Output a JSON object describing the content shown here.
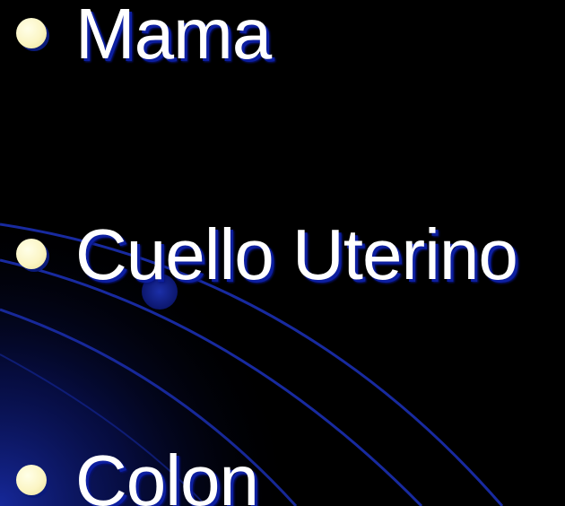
{
  "slide": {
    "background_color": "#000000",
    "accent_color": "#1a2fb5",
    "bullet_color": "#fbf5c4",
    "bullets": [
      {
        "icon": "bullet-dot",
        "label": "Mama"
      },
      {
        "icon": "bullet-dot",
        "label": "Cuello Uterino"
      },
      {
        "icon": "bullet-dot",
        "label": "Colon"
      }
    ]
  }
}
